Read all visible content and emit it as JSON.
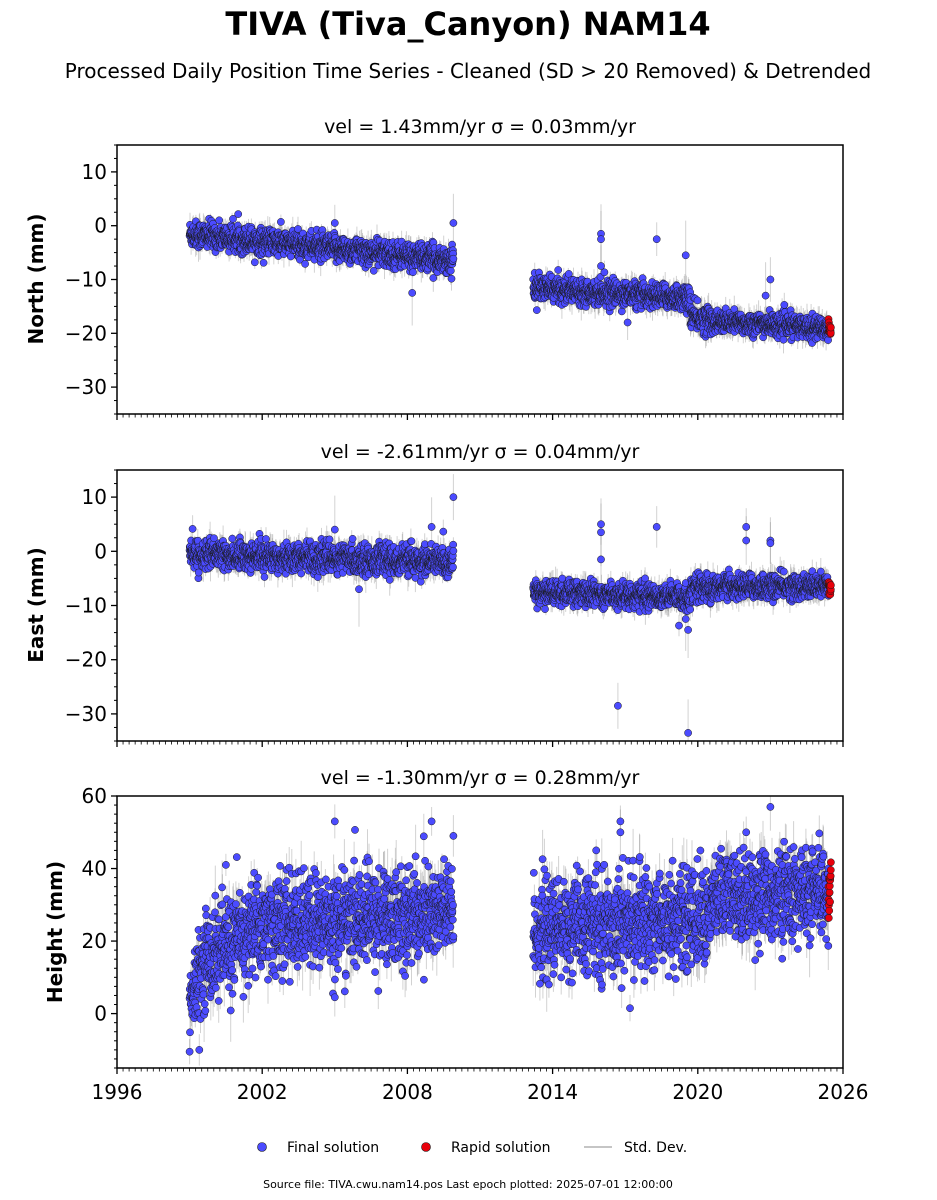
{
  "title": "TIVA (Tiva_Canyon) NAM14",
  "subtitle": "Processed Daily Position Time Series - Cleaned (SD > 20 Removed) & Detrended",
  "footer": "Source file: TIVA.cwu.nam14.pos  Last epoch plotted: 2025-07-01 12:00:00",
  "legend": {
    "final": "Final solution",
    "rapid": "Rapid solution",
    "std": "Std. Dev."
  },
  "colors": {
    "final": "#4b4bff",
    "rapid": "#e8000b",
    "std": "#808080",
    "edge": "#1a1a1a"
  },
  "chart_data": [
    {
      "type": "scatter",
      "title": "vel = 1.43mm/yr   σ = 0.03mm/yr",
      "ylabel": "North (mm)",
      "xlim": [
        1996,
        2026
      ],
      "ylim": [
        -35,
        15
      ],
      "yticks": [
        10,
        0,
        -10,
        -20,
        -30
      ],
      "series": [
        {
          "name": "Final solution",
          "segments": [
            {
              "x0": 1999.0,
              "x1": 2009.9,
              "y0": -1.5,
              "y1": -6.5,
              "sd": 1.2,
              "err": 1.8
            },
            {
              "x0": 2013.2,
              "x1": 2019.7,
              "y0": -11.5,
              "y1": -13.5,
              "sd": 1.1,
              "err": 1.8
            },
            {
              "x0": 2019.7,
              "x1": 2020.6,
              "y0": -17.0,
              "y1": -17.5,
              "sd": 1.3,
              "err": 2.0
            },
            {
              "x0": 2020.6,
              "x1": 2025.4,
              "y0": -17.8,
              "y1": -19.0,
              "sd": 1.0,
              "err": 1.8
            }
          ]
        },
        {
          "name": "Rapid solution",
          "segments": [
            {
              "x0": 2025.4,
              "x1": 2025.5,
              "y0": -19.0,
              "y1": -19.5,
              "sd": 0.8,
              "err": 1.0
            }
          ]
        }
      ],
      "outliers": [
        [
          2005.0,
          0.5
        ],
        [
          2009.9,
          0.5
        ],
        [
          2016.0,
          -1.5
        ],
        [
          2016.0,
          -2.5
        ],
        [
          2019.5,
          -5.5
        ],
        [
          2018.3,
          -2.5
        ],
        [
          2016.0,
          -7.5
        ],
        [
          2023.0,
          -10.0
        ],
        [
          2022.8,
          -13.0
        ],
        [
          2008.2,
          -12.5
        ],
        [
          2017.1,
          -18.0
        ]
      ]
    },
    {
      "type": "scatter",
      "title": "vel = -2.61mm/yr   σ = 0.04mm/yr",
      "ylabel": "East (mm)",
      "xlim": [
        1996,
        2026
      ],
      "ylim": [
        -35,
        15
      ],
      "yticks": [
        10,
        0,
        -10,
        -20,
        -30
      ],
      "series": [
        {
          "name": "Final solution",
          "segments": [
            {
              "x0": 1999.0,
              "x1": 2009.9,
              "y0": -0.5,
              "y1": -2.0,
              "sd": 1.3,
              "err": 2.0
            },
            {
              "x0": 2013.2,
              "x1": 2019.7,
              "y0": -7.5,
              "y1": -8.5,
              "sd": 1.1,
              "err": 1.8
            },
            {
              "x0": 2019.7,
              "x1": 2020.6,
              "y0": -6.5,
              "y1": -7.0,
              "sd": 1.3,
              "err": 2.0
            },
            {
              "x0": 2020.6,
              "x1": 2025.4,
              "y0": -6.5,
              "y1": -6.5,
              "sd": 1.1,
              "err": 1.8
            }
          ]
        },
        {
          "name": "Rapid solution",
          "segments": [
            {
              "x0": 2025.4,
              "x1": 2025.5,
              "y0": -6.2,
              "y1": -7.0,
              "sd": 0.8,
              "err": 1.0
            }
          ]
        }
      ],
      "outliers": [
        [
          2009.9,
          10.0
        ],
        [
          2009.0,
          4.5
        ],
        [
          2005.0,
          4.0
        ],
        [
          2016.0,
          5.0
        ],
        [
          2016.0,
          3.5
        ],
        [
          2018.3,
          4.5
        ],
        [
          2022.0,
          4.5
        ],
        [
          2022.0,
          2.0
        ],
        [
          2023.0,
          2.0
        ],
        [
          2023.0,
          1.5
        ],
        [
          2016.0,
          -1.5
        ],
        [
          2016.7,
          -28.5
        ],
        [
          2019.6,
          -33.5
        ],
        [
          2019.6,
          -14.5
        ],
        [
          2019.5,
          -12.5
        ],
        [
          2006.0,
          -7.0
        ]
      ]
    },
    {
      "type": "scatter",
      "title": "vel = -1.30mm/yr   σ = 0.28mm/yr",
      "ylabel": "Height (mm)",
      "xlim": [
        1996,
        2026
      ],
      "ylim": [
        -15,
        60
      ],
      "yticks": [
        60,
        40,
        20,
        0
      ],
      "xticks": [
        1996,
        2002,
        2008,
        2014,
        2020,
        2026
      ],
      "series": [
        {
          "name": "Final solution",
          "segments": [
            {
              "x0": 1999.0,
              "x1": 1999.6,
              "y0": 2.0,
              "y1": 15.0,
              "sd": 5.0,
              "err": 5.0
            },
            {
              "x0": 1999.6,
              "x1": 2001.5,
              "y0": 15.0,
              "y1": 22.0,
              "sd": 6.5,
              "err": 6.0
            },
            {
              "x0": 2001.5,
              "x1": 2009.9,
              "y0": 24.0,
              "y1": 28.0,
              "sd": 6.5,
              "err": 6.0
            },
            {
              "x0": 2013.2,
              "x1": 2020.6,
              "y0": 23.0,
              "y1": 27.0,
              "sd": 6.5,
              "err": 6.0
            },
            {
              "x0": 2020.6,
              "x1": 2025.4,
              "y0": 32.0,
              "y1": 33.0,
              "sd": 6.0,
              "err": 6.0
            }
          ]
        },
        {
          "name": "Rapid solution",
          "segments": [
            {
              "x0": 2025.4,
              "x1": 2025.5,
              "y0": 30.0,
              "y1": 39.0,
              "sd": 2.5,
              "err": 1.5
            }
          ]
        }
      ],
      "outliers": [
        [
          1999.0,
          -10.5
        ],
        [
          1999.4,
          -10.0
        ],
        [
          2005.0,
          53.0
        ],
        [
          2009.0,
          53.0
        ],
        [
          2009.9,
          49.0
        ],
        [
          2016.8,
          53.0
        ],
        [
          2016.8,
          50.0
        ],
        [
          2017.2,
          1.5
        ],
        [
          2023.0,
          57.0
        ],
        [
          2022.0,
          50.0
        ],
        [
          2005.0,
          4.5
        ],
        [
          2015.8,
          45.0
        ],
        [
          2000.5,
          41.0
        ]
      ]
    }
  ]
}
